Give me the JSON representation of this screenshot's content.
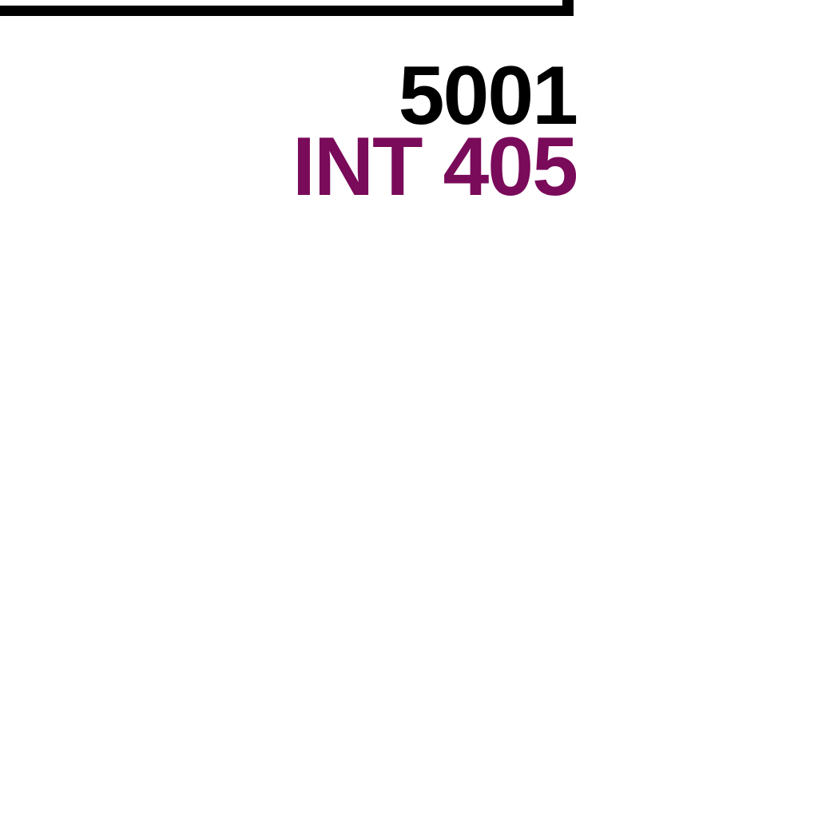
{
  "map": {
    "label": {
      "primary_text": "5001",
      "secondary_text": "INT 405"
    },
    "colors": {
      "background": "#ffffff",
      "outline": "#000000",
      "primary_text": "#000000",
      "secondary_text": "#7a0a5a"
    }
  }
}
